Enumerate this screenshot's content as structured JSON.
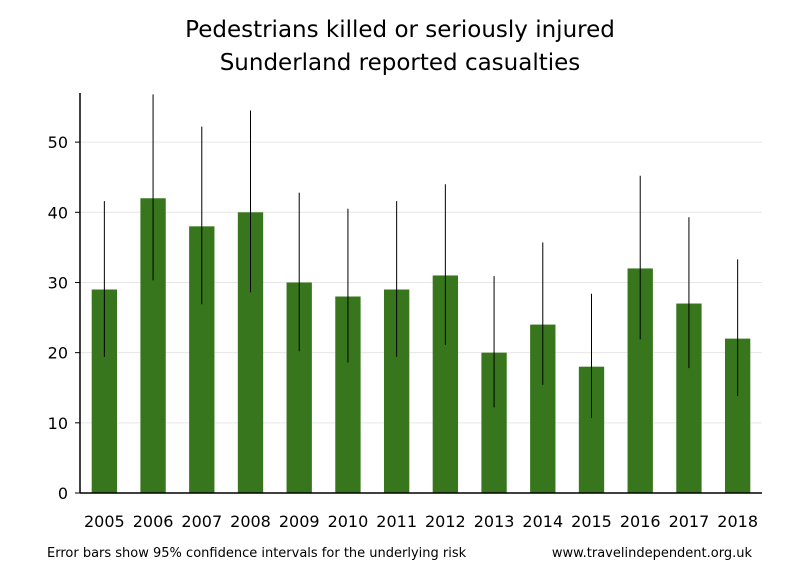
{
  "chart_data": {
    "type": "bar",
    "title": "Pedestrians killed or seriously injured",
    "subtitle": "Sunderland reported casualties",
    "xlabel": "",
    "ylabel": "",
    "ylim": [
      0,
      57
    ],
    "yticks": [
      0,
      10,
      20,
      30,
      40,
      50
    ],
    "grid": true,
    "legend": "none",
    "categories": [
      "2005",
      "2006",
      "2007",
      "2008",
      "2009",
      "2010",
      "2011",
      "2012",
      "2013",
      "2014",
      "2015",
      "2016",
      "2017",
      "2018"
    ],
    "values": [
      29,
      42,
      38,
      40,
      30,
      28,
      29,
      31,
      20,
      24,
      18,
      32,
      27,
      22
    ],
    "error_low": [
      19.4,
      30.3,
      26.9,
      28.6,
      20.2,
      18.6,
      19.4,
      21.1,
      12.2,
      15.4,
      10.7,
      21.9,
      17.8,
      13.8
    ],
    "error_high": [
      41.6,
      56.8,
      52.2,
      54.5,
      42.8,
      40.5,
      41.6,
      44.0,
      30.9,
      35.7,
      28.4,
      45.2,
      39.3,
      33.3
    ],
    "bar_color": "#38761d",
    "footnote": "Error bars show 95% confidence intervals for the underlying risk",
    "source": "www.travelindependent.org.uk"
  }
}
